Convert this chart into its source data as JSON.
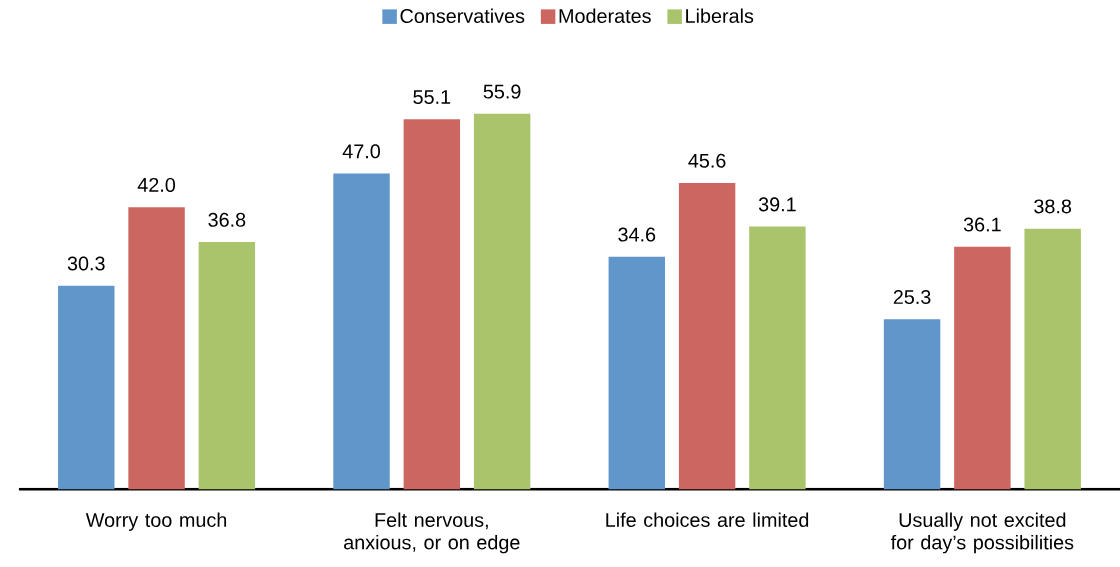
{
  "chart_data": {
    "type": "bar",
    "categories": [
      "Worry too much",
      "Felt nervous, anxious, or on edge",
      "Life choices are limited",
      "Usually not excited for day’s possibilities"
    ],
    "series": [
      {
        "name": "Conservatives",
        "color": "#6096c9",
        "values": [
          30.3,
          47.0,
          34.6,
          25.3
        ],
        "value_labels": [
          "30.3",
          "47.0",
          "34.6",
          "25.3"
        ]
      },
      {
        "name": "Moderates",
        "color": "#cc6660",
        "values": [
          42.0,
          55.1,
          45.6,
          36.1
        ],
        "value_labels": [
          "42.0",
          "55.1",
          "45.6",
          "36.1"
        ]
      },
      {
        "name": "Liberals",
        "color": "#a9c46a",
        "values": [
          36.8,
          55.9,
          39.1,
          38.8
        ],
        "value_labels": [
          "36.8",
          "55.9",
          "39.1",
          "38.8"
        ]
      }
    ],
    "legend": "top"
  }
}
